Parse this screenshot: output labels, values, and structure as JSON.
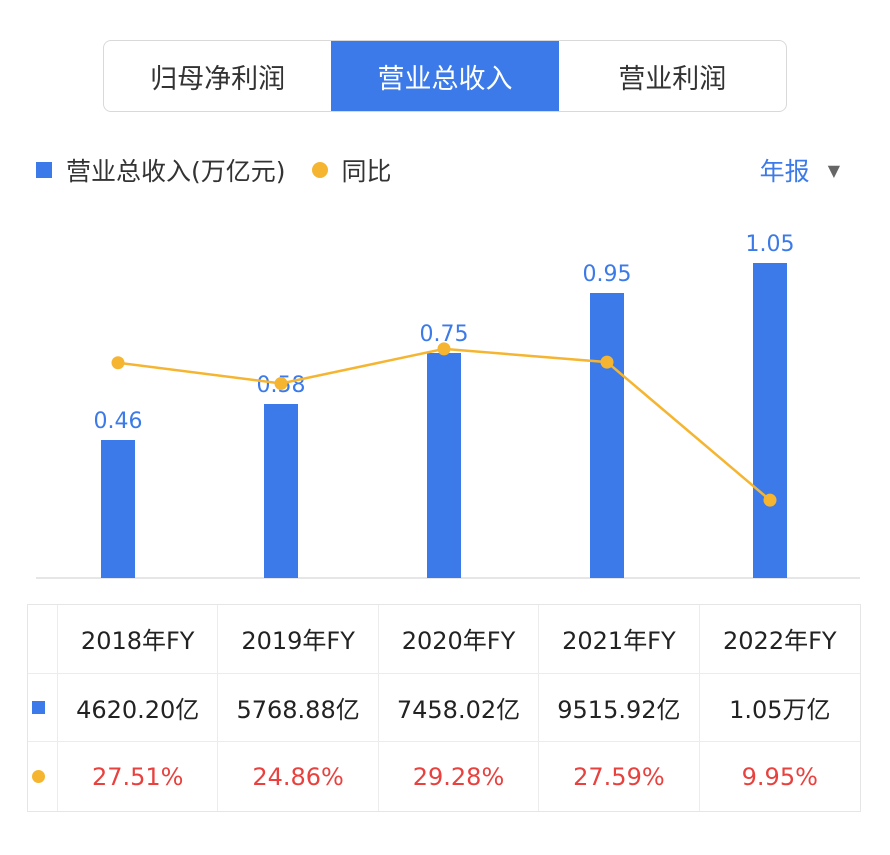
{
  "tabs": [
    {
      "label": "归母净利润",
      "active": false
    },
    {
      "label": "营业总收入",
      "active": true
    },
    {
      "label": "营业利润",
      "active": false
    }
  ],
  "legend": {
    "bar_label": "营业总收入(万亿元)",
    "line_label": "同比"
  },
  "period_selector": {
    "label": "年报",
    "caret_icon": "caret-down-icon"
  },
  "colors": {
    "bar": "#3b7ae8",
    "line": "#f5b531",
    "pct_text": "#e8413e",
    "label_text": "#3b7ae8"
  },
  "chart_data": {
    "type": "bar",
    "categories": [
      "2018年FY",
      "2019年FY",
      "2020年FY",
      "2021年FY",
      "2022年FY"
    ],
    "series": [
      {
        "name": "营业总收入(万亿元)",
        "type": "bar",
        "values": [
          0.46,
          0.58,
          0.75,
          0.95,
          1.05
        ],
        "labels": [
          "0.46",
          "0.58",
          "0.75",
          "0.95",
          "1.05"
        ]
      },
      {
        "name": "同比",
        "type": "line",
        "values": [
          27.51,
          24.86,
          29.28,
          27.59,
          9.95
        ]
      }
    ],
    "grid": false,
    "legend_position": "top-left"
  },
  "table": {
    "headers": [
      "2018年FY",
      "2019年FY",
      "2020年FY",
      "2021年FY",
      "2022年FY"
    ],
    "revenue": [
      "4620.20亿",
      "5768.88亿",
      "7458.02亿",
      "9515.92亿",
      "1.05万亿"
    ],
    "yoy": [
      "27.51%",
      "24.86%",
      "29.28%",
      "27.59%",
      "9.95%"
    ]
  }
}
